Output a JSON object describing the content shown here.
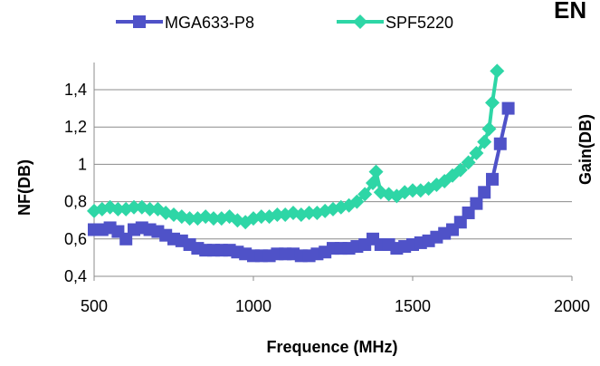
{
  "chart_data": {
    "type": "line",
    "xlabel": "Frequence (MHz)",
    "ylabel": "NF(DB)",
    "y2label": "Gain(DB)",
    "header_fragment": "EN",
    "xlim": [
      500,
      2000
    ],
    "ylim": [
      0.4,
      1.4
    ],
    "xticks": [
      "500",
      "1000",
      "1500",
      "2000"
    ],
    "yticks": [
      "0,4",
      "0,6",
      "0,8",
      "1",
      "1,2",
      "1,4"
    ],
    "legend": "top",
    "grid": "horizontal",
    "series": [
      {
        "name": "MGA633-P8",
        "color": "#4f52c8",
        "marker": "square",
        "x": [
          500,
          525,
          550,
          575,
          600,
          625,
          650,
          675,
          700,
          725,
          750,
          775,
          800,
          825,
          850,
          875,
          900,
          925,
          950,
          975,
          1000,
          1025,
          1050,
          1075,
          1100,
          1125,
          1150,
          1175,
          1200,
          1225,
          1250,
          1275,
          1300,
          1325,
          1350,
          1375,
          1400,
          1425,
          1450,
          1475,
          1500,
          1525,
          1550,
          1575,
          1600,
          1625,
          1650,
          1675,
          1700,
          1725,
          1750,
          1775,
          1800
        ],
        "y": [
          0.65,
          0.65,
          0.66,
          0.64,
          0.6,
          0.65,
          0.66,
          0.65,
          0.64,
          0.62,
          0.6,
          0.59,
          0.57,
          0.55,
          0.54,
          0.54,
          0.54,
          0.54,
          0.53,
          0.52,
          0.51,
          0.51,
          0.51,
          0.52,
          0.52,
          0.52,
          0.51,
          0.51,
          0.52,
          0.53,
          0.55,
          0.55,
          0.55,
          0.56,
          0.57,
          0.6,
          0.57,
          0.57,
          0.55,
          0.56,
          0.57,
          0.58,
          0.59,
          0.61,
          0.63,
          0.65,
          0.69,
          0.74,
          0.79,
          0.85,
          0.92,
          1.11,
          1.3
        ]
      },
      {
        "name": "SPF5220",
        "color": "#2ed6a6",
        "marker": "diamond",
        "x": [
          500,
          525,
          550,
          575,
          600,
          625,
          650,
          675,
          700,
          725,
          750,
          775,
          800,
          825,
          850,
          875,
          900,
          925,
          950,
          975,
          1000,
          1025,
          1050,
          1075,
          1100,
          1125,
          1150,
          1175,
          1200,
          1225,
          1250,
          1275,
          1300,
          1325,
          1350,
          1375,
          1385,
          1400,
          1425,
          1450,
          1475,
          1500,
          1525,
          1550,
          1575,
          1600,
          1625,
          1650,
          1675,
          1700,
          1725,
          1740,
          1750,
          1765
        ],
        "y": [
          0.75,
          0.76,
          0.77,
          0.76,
          0.76,
          0.77,
          0.77,
          0.76,
          0.76,
          0.74,
          0.73,
          0.72,
          0.71,
          0.71,
          0.72,
          0.71,
          0.71,
          0.72,
          0.7,
          0.69,
          0.71,
          0.72,
          0.72,
          0.73,
          0.73,
          0.74,
          0.73,
          0.74,
          0.74,
          0.75,
          0.76,
          0.77,
          0.78,
          0.8,
          0.84,
          0.9,
          0.96,
          0.85,
          0.84,
          0.83,
          0.85,
          0.86,
          0.86,
          0.87,
          0.89,
          0.91,
          0.94,
          0.97,
          1.01,
          1.06,
          1.12,
          1.19,
          1.33,
          1.5
        ]
      }
    ]
  }
}
